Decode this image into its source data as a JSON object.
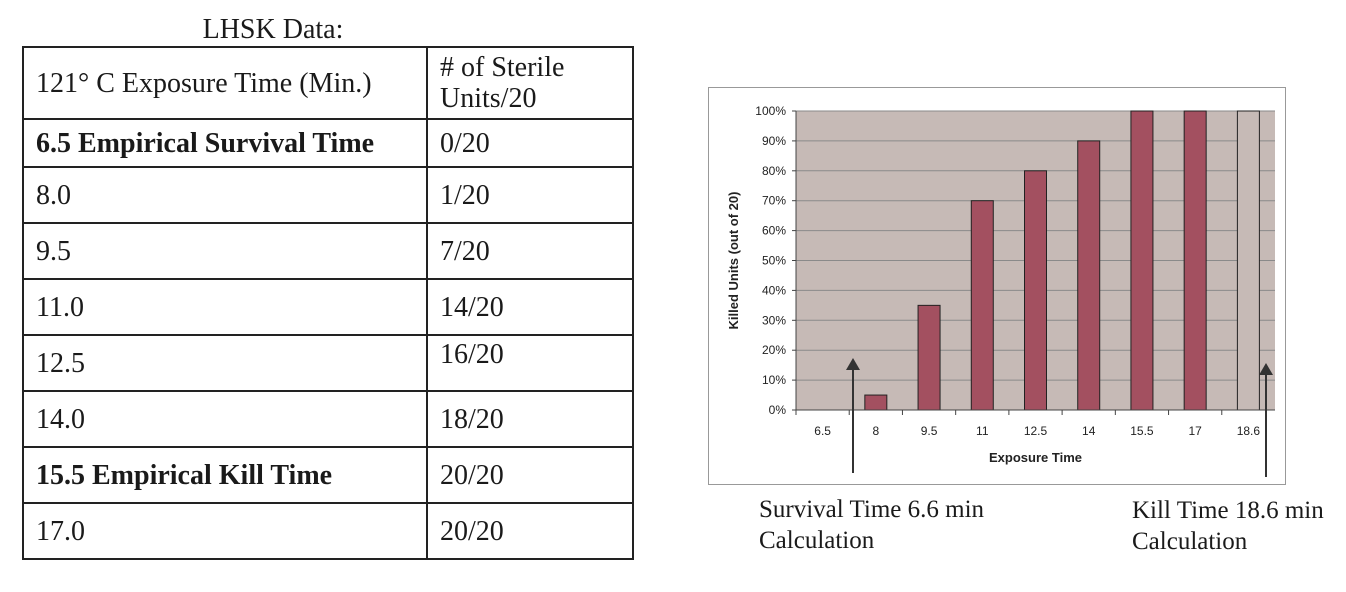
{
  "table": {
    "title": "LHSK Data:",
    "headers": [
      "121° C Exposure Time (Min.)",
      "# of Sterile\nUnits/20"
    ],
    "rows": [
      {
        "time": "6.5 Empirical Survival Time",
        "units": "0/20",
        "bold": true
      },
      {
        "time": "8.0",
        "units": "1/20",
        "bold": false
      },
      {
        "time": "9.5",
        "units": "7/20",
        "bold": false
      },
      {
        "time": "11.0",
        "units": "14/20",
        "bold": false
      },
      {
        "time": "12.5",
        "units": "16/20",
        "bold": false
      },
      {
        "time": "14.0",
        "units": "18/20",
        "bold": false
      },
      {
        "time": "15.5 Empirical Kill Time",
        "units": "20/20",
        "bold": true
      },
      {
        "time": "17.0",
        "units": "20/20",
        "bold": false
      }
    ]
  },
  "chart_data": {
    "type": "bar",
    "categories": [
      "6.5",
      "8",
      "9.5",
      "11",
      "12.5",
      "14",
      "15.5",
      "17",
      "18.6"
    ],
    "values": [
      0,
      5,
      35,
      70,
      80,
      90,
      100,
      100,
      100
    ],
    "xlabel": "Exposure Time",
    "ylabel": "Killed Units (out of 20)",
    "ylim": [
      0,
      100
    ],
    "yticks": [
      "0%",
      "10%",
      "20%",
      "30%",
      "40%",
      "50%",
      "60%",
      "70%",
      "80%",
      "90%",
      "100%"
    ],
    "grid": true,
    "legend": "none",
    "colors": {
      "bar": "#a35060",
      "bar_last": "#c6bab6",
      "plot_bg": "#c6bab6",
      "grid": "#8a8a8a"
    }
  },
  "annotations": {
    "survival_line1": "Survival Time 6.6 min",
    "survival_line2": "Calculation",
    "kill_line1": "Kill Time 18.6 min",
    "kill_line2": "Calculation"
  }
}
